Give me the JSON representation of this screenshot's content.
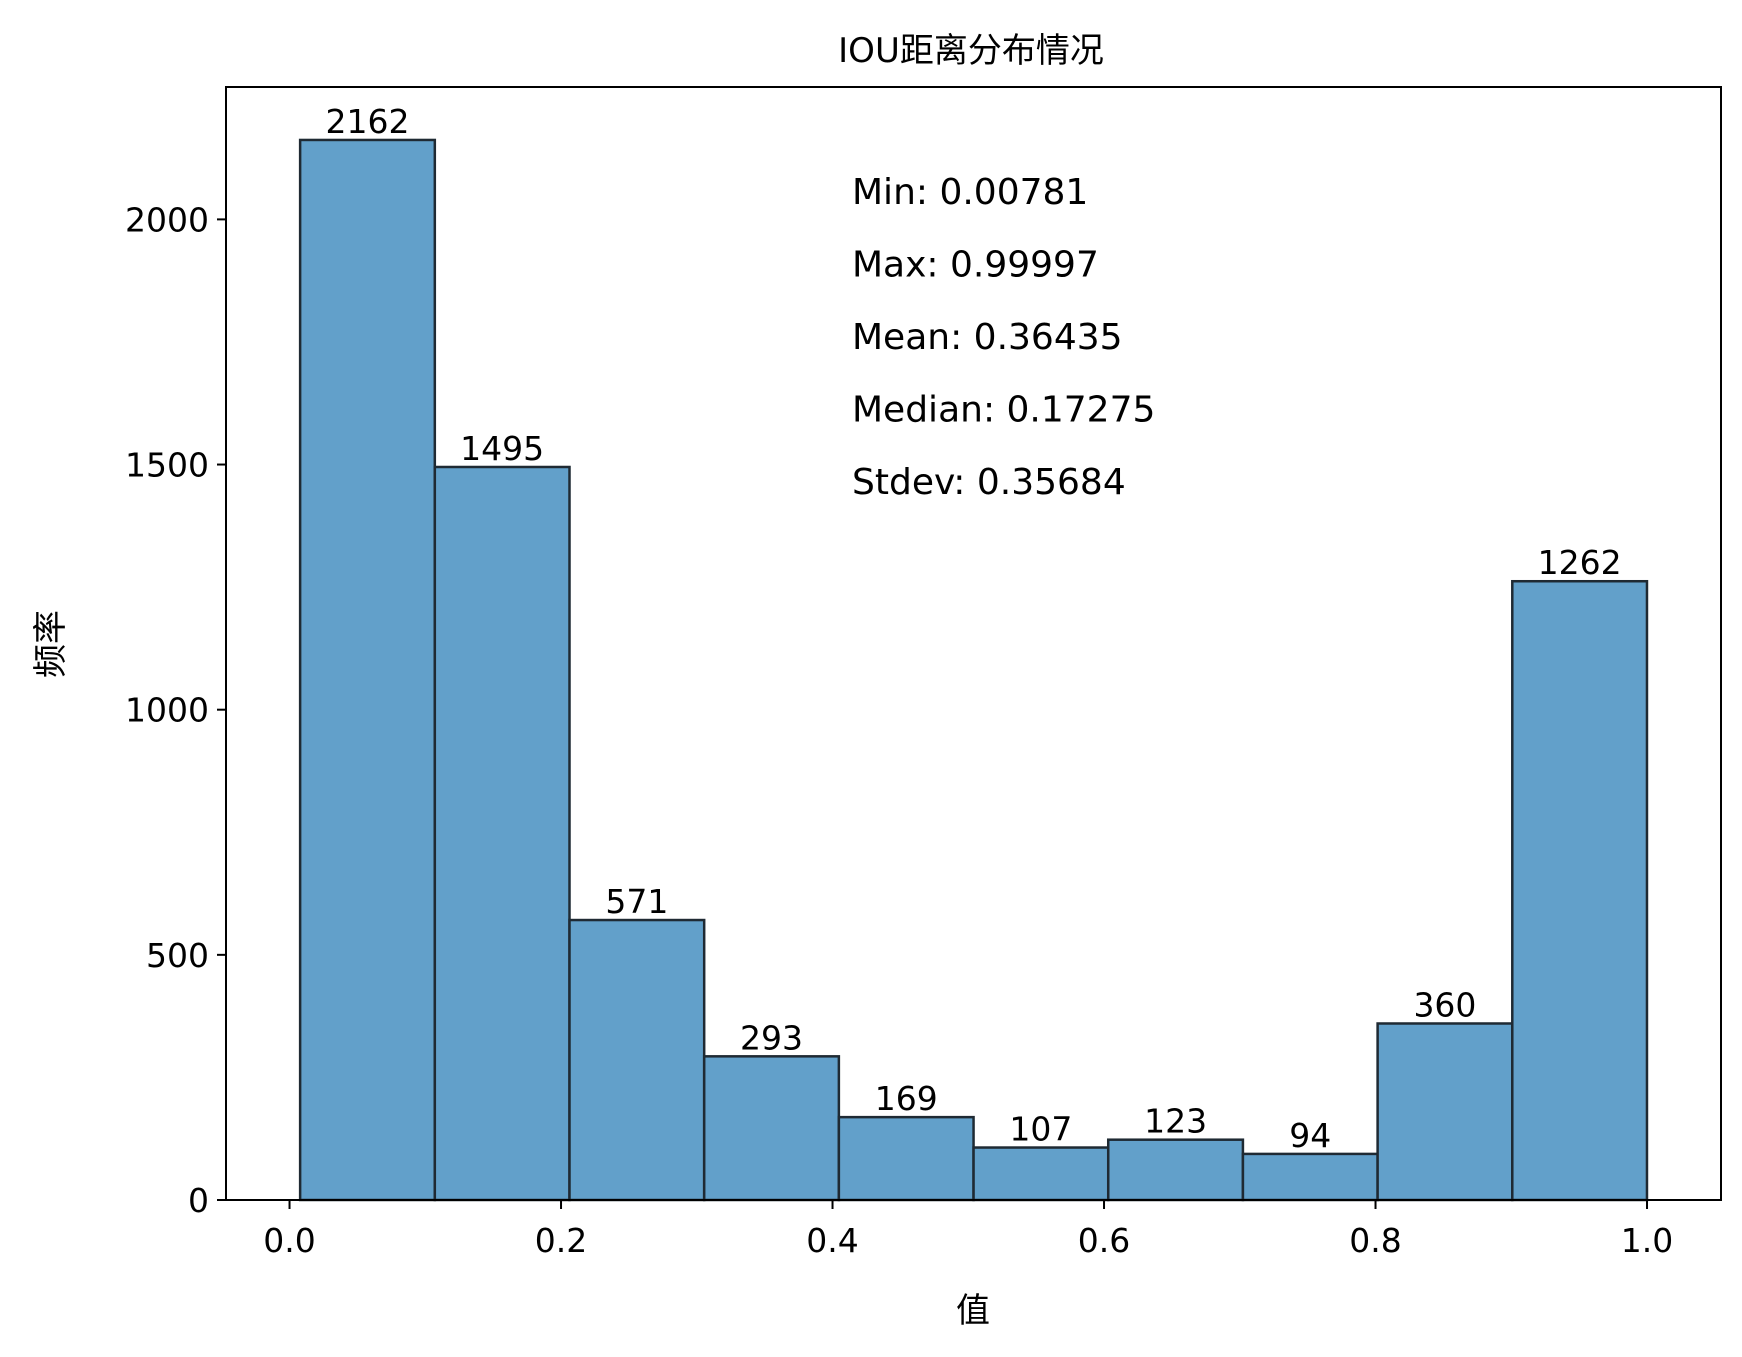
{
  "chart_data": {
    "type": "bar",
    "title": "IOU距离分布情况",
    "xlabel": "值",
    "ylabel": "频率",
    "bin_edges": [
      0.00781,
      0.107026,
      0.206242,
      0.305458,
      0.404674,
      0.50389,
      0.603106,
      0.702322,
      0.801538,
      0.900754,
      0.99997
    ],
    "values": [
      2162,
      1495,
      571,
      293,
      169,
      107,
      123,
      94,
      360,
      1262
    ],
    "bar_labels": [
      "2162",
      "1495",
      "571",
      "293",
      "169",
      "107",
      "123",
      "94",
      "360",
      "1262"
    ],
    "xlim": [
      -0.0468,
      1.0545
    ],
    "ylim": [
      0,
      2270
    ],
    "xticks": [
      0.0,
      0.2,
      0.4,
      0.6,
      0.8,
      1.0
    ],
    "xtick_labels": [
      "0.0",
      "0.2",
      "0.4",
      "0.6",
      "0.8",
      "1.0"
    ],
    "yticks": [
      0,
      500,
      1000,
      1500,
      2000
    ],
    "ytick_labels": [
      "0",
      "500",
      "1000",
      "1500",
      "2000"
    ],
    "bar_color": "#62a0ca",
    "bar_edge_color": "#1f2a33",
    "grid": false,
    "annotations": [
      "Min: 0.00781",
      "Max: 0.99997",
      "Mean: 0.36435",
      "Median: 0.17275",
      "Stdev: 0.35684"
    ]
  }
}
